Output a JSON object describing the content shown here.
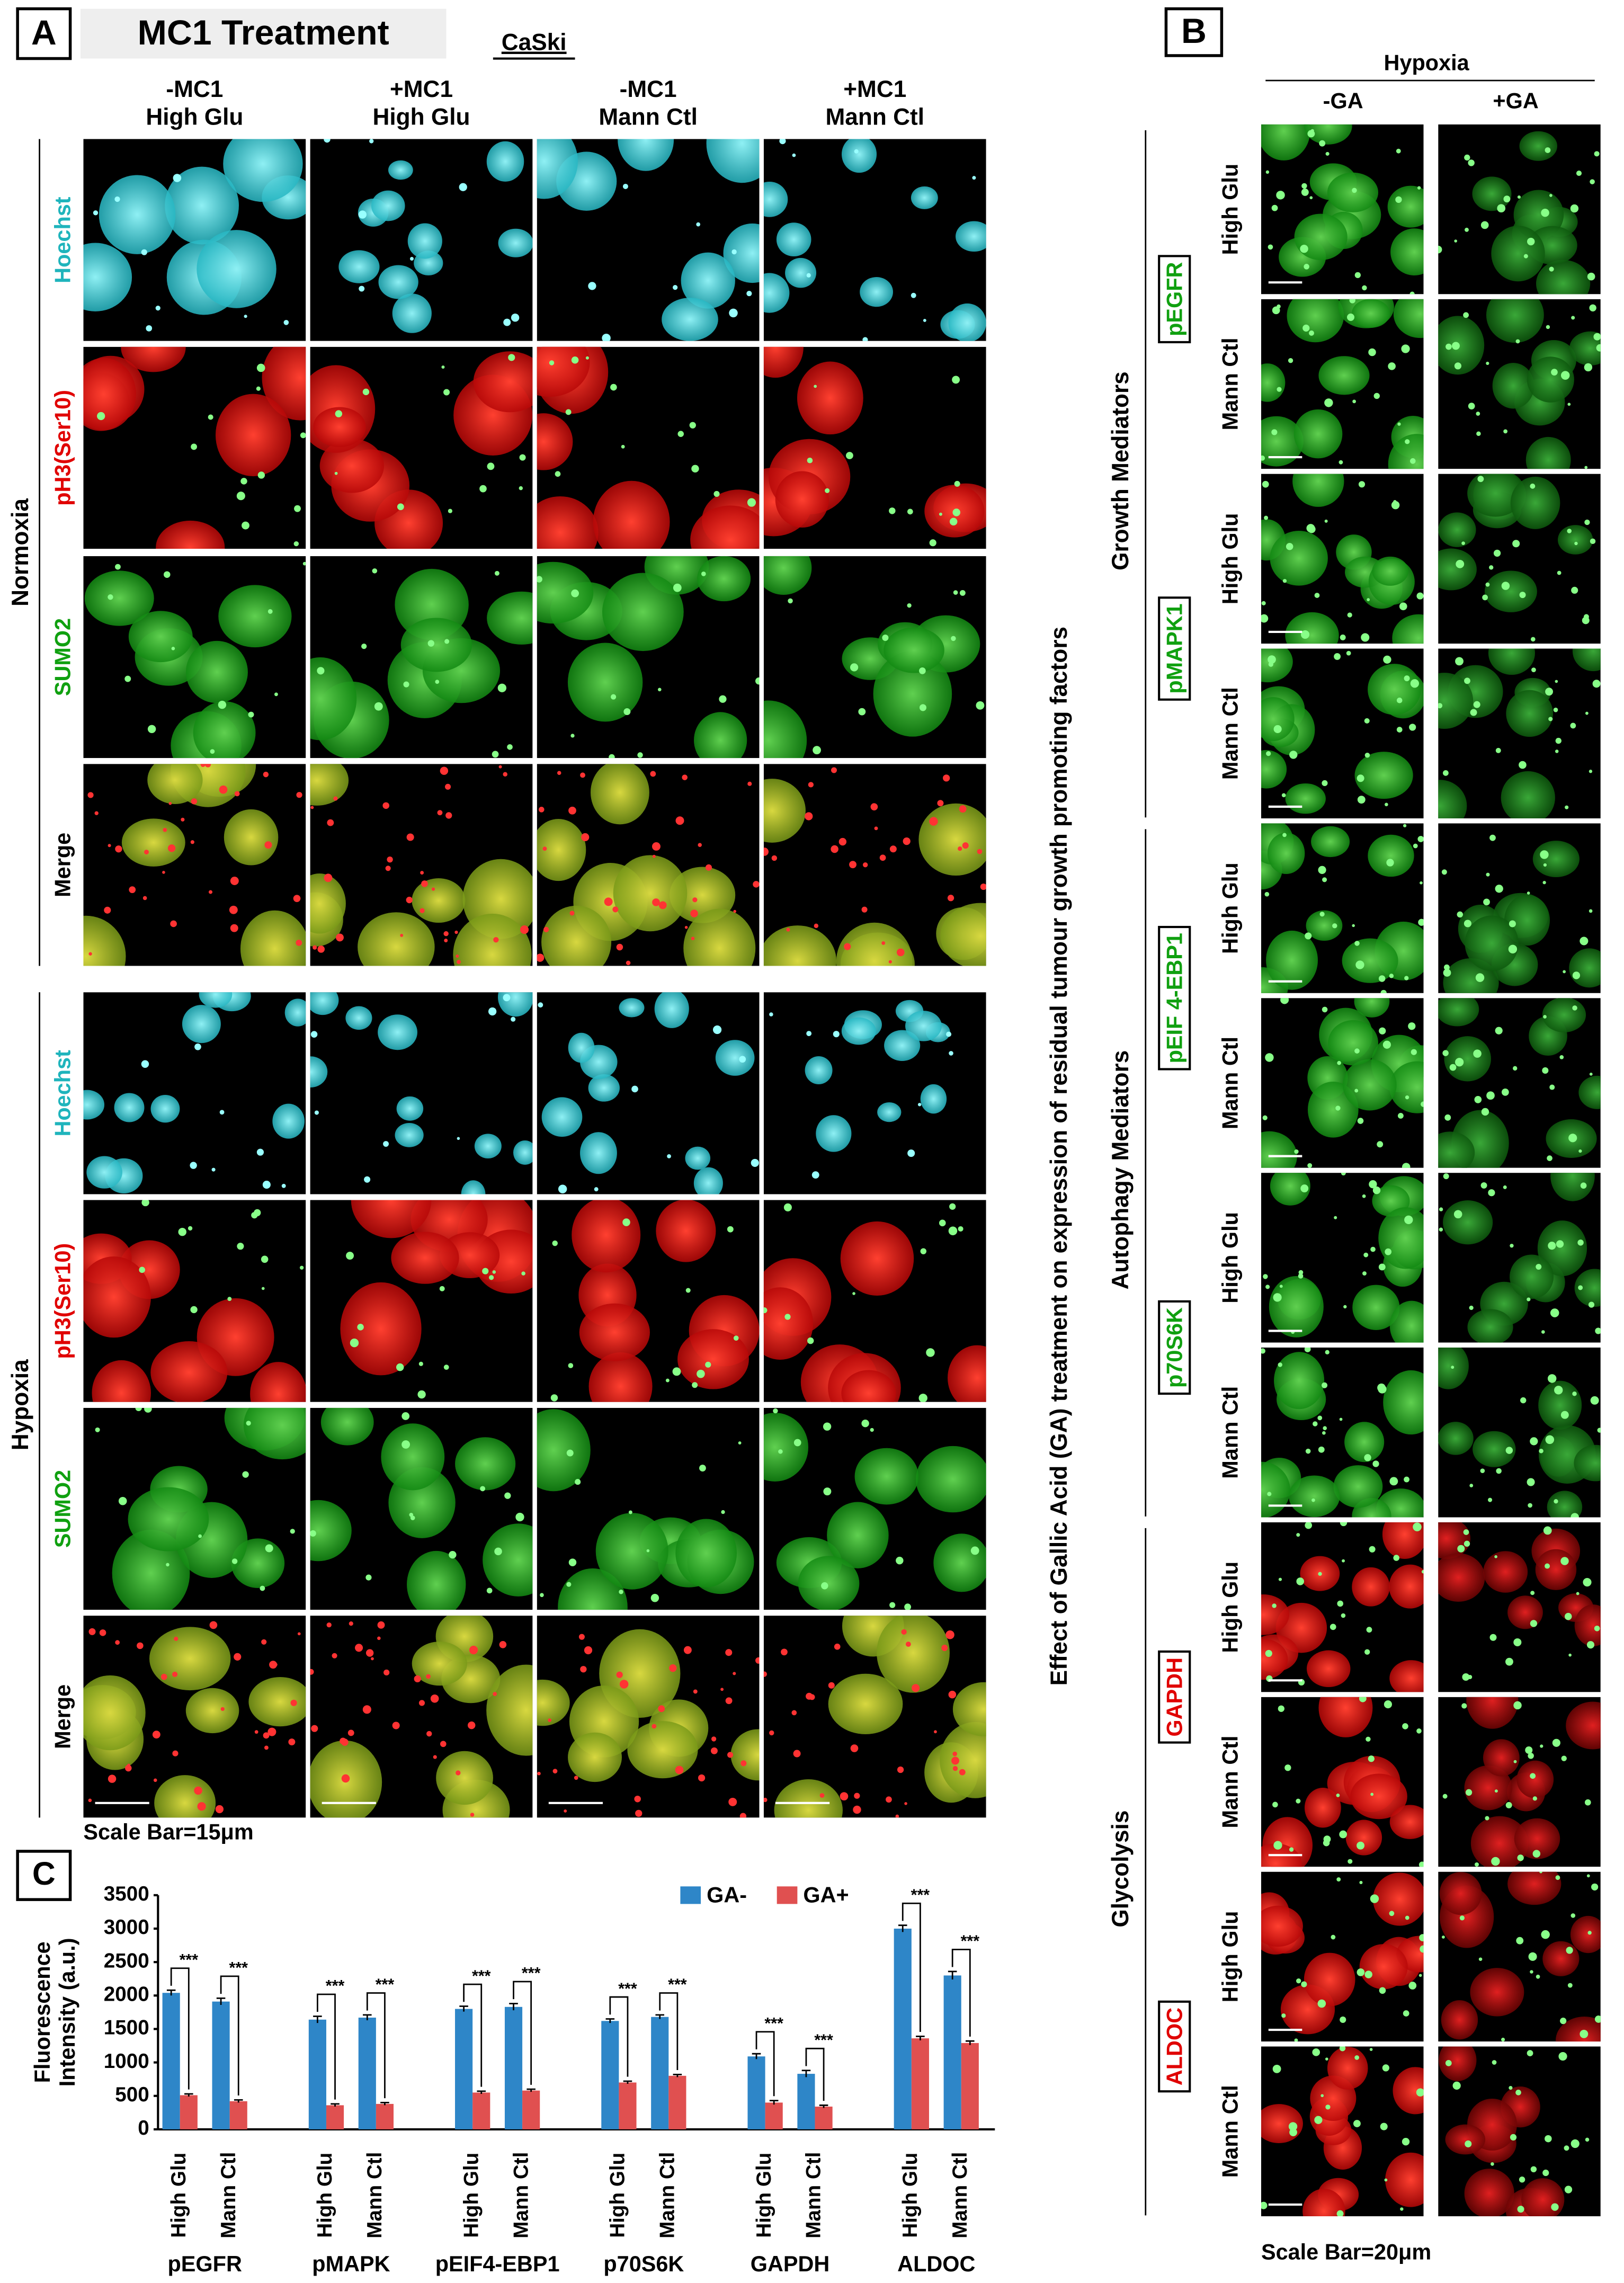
{
  "panel_a": {
    "label": "A",
    "title": "MC1 Treatment",
    "cell_line": "CaSki",
    "columns": [
      [
        "-MC1",
        "High Glu"
      ],
      [
        "+MC1",
        "High Glu"
      ],
      [
        "-MC1",
        "Mann Ctl"
      ],
      [
        "+MC1",
        "Mann Ctl"
      ]
    ],
    "conditions": [
      {
        "name": "Normoxia"
      },
      {
        "name": "Hypoxia"
      }
    ],
    "rows": [
      {
        "label": "Hoechst",
        "color": "#1fb4bc"
      },
      {
        "label": "pH3(Ser10)",
        "color": "#e00000"
      },
      {
        "label": "SUMO2",
        "color": "#10a010"
      },
      {
        "label": "Merge",
        "color": "#000000"
      }
    ],
    "scale_bar": "Scale Bar=15μm"
  },
  "panel_b": {
    "label": "B",
    "condition": "Hypoxia",
    "columns": [
      "-GA",
      "+GA"
    ],
    "title": "Effect of Gallic Acid (GA) treatment on expression of residual tumour growth promoting factors",
    "groups": [
      {
        "name": "Growth Mediators",
        "proteins": [
          {
            "name": "pEGFR",
            "color": "#10a010"
          },
          {
            "name": "pMAPK1",
            "color": "#10a010"
          }
        ]
      },
      {
        "name": "Autophagy Mediators",
        "proteins": [
          {
            "name": "pEIF 4-EBP1",
            "color": "#10a010"
          },
          {
            "name": "p70S6K",
            "color": "#10a010"
          }
        ]
      },
      {
        "name": "Glycolysis",
        "proteins": [
          {
            "name": "GAPDH",
            "color": "#e00000"
          },
          {
            "name": "ALDOC",
            "color": "#e00000"
          }
        ]
      }
    ],
    "rows": [
      "High Glu",
      "Mann Ctl"
    ],
    "scale_bar": "Scale Bar=20μm"
  },
  "chart_data": {
    "type": "bar",
    "label": "C",
    "y_label": [
      "Fluorescence",
      "Intensity (a.u.)"
    ],
    "groups": [
      "pEGFR",
      "pMAPK",
      "pEIF4-EBP1",
      "p70S6K",
      "GAPDH",
      "ALDOC"
    ],
    "categories": [
      "High Glu",
      "Mann Ctl",
      "High Glu",
      "Mann Ctl",
      "High Glu",
      "Mann Ctl",
      "High Glu",
      "Mann Ctl",
      "High Glu",
      "Mann Ctl",
      "High Glu",
      "Mann Ctl"
    ],
    "series": [
      {
        "name": "GA-",
        "color": "#2e86c8",
        "values": [
          2040,
          1910,
          1640,
          1670,
          1800,
          1830,
          1620,
          1680,
          1090,
          830,
          3000,
          2300
        ],
        "errors": [
          40,
          50,
          50,
          40,
          40,
          50,
          30,
          30,
          40,
          50,
          50,
          60
        ]
      },
      {
        "name": "GA+",
        "color": "#e05050",
        "values": [
          510,
          420,
          360,
          380,
          550,
          580,
          700,
          800,
          400,
          340,
          1360,
          1290
        ],
        "errors": [
          20,
          20,
          20,
          20,
          20,
          20,
          20,
          20,
          30,
          20,
          30,
          30
        ]
      }
    ],
    "annotations": [
      "***",
      "***",
      "***",
      "***",
      "***",
      "***",
      "***",
      "***",
      "***",
      "***",
      "***",
      "***"
    ],
    "ylim": [
      0,
      3500
    ],
    "yticks": [
      0,
      500,
      1000,
      1500,
      2000,
      2500,
      3000,
      3500
    ],
    "legend": "top-right"
  }
}
